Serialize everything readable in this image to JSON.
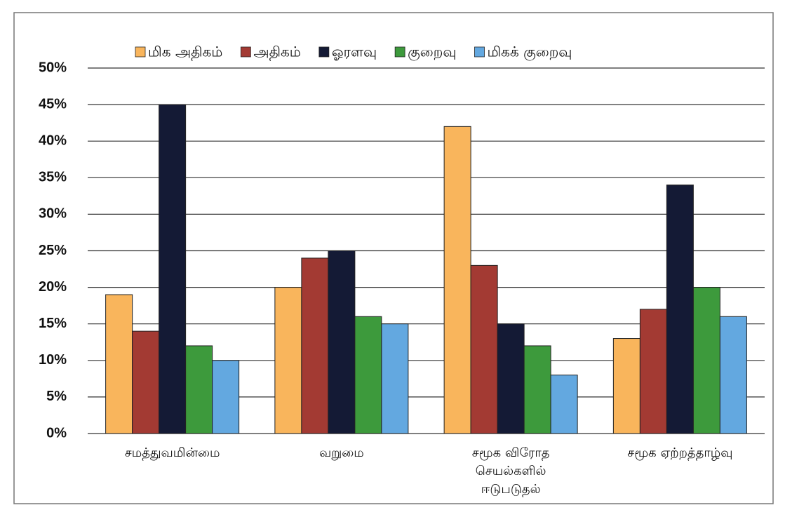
{
  "chart_data": {
    "type": "bar",
    "categories": [
      "சமத்துவமின்மை",
      "வறுமை",
      "சமூக விரோத\nசெயல்களில்\nஈடுபடுதல்",
      "சமூக ஏற்றத்தாழ்வு"
    ],
    "series": [
      {
        "name": "மிக அதிகம்",
        "color": "#f9b55c",
        "values": [
          19,
          20,
          42,
          13
        ]
      },
      {
        "name": "அதிகம்",
        "color": "#a33a33",
        "values": [
          14,
          24,
          23,
          17
        ]
      },
      {
        "name": "ஓரளவு",
        "color": "#141a35",
        "values": [
          45,
          25,
          15,
          34
        ]
      },
      {
        "name": "குறைவு",
        "color": "#3d9a3c",
        "values": [
          12,
          16,
          12,
          20
        ]
      },
      {
        "name": "மிகக் குறைவு",
        "color": "#63a8e0",
        "values": [
          10,
          15,
          8,
          16
        ]
      }
    ],
    "ylim": [
      0,
      50
    ],
    "yticks": [
      {
        "value": 0,
        "label": "0%"
      },
      {
        "value": 5,
        "label": "5%"
      },
      {
        "value": 10,
        "label": "10%"
      },
      {
        "value": 15,
        "label": "15%"
      },
      {
        "value": 20,
        "label": "20%"
      },
      {
        "value": 25,
        "label": "25%"
      },
      {
        "value": 30,
        "label": "30%"
      },
      {
        "value": 35,
        "label": "35%"
      },
      {
        "value": 40,
        "label": "40%"
      },
      {
        "value": 45,
        "label": "45%"
      },
      {
        "value": 50,
        "label": "50%"
      }
    ],
    "grid": true,
    "legend": "top"
  }
}
